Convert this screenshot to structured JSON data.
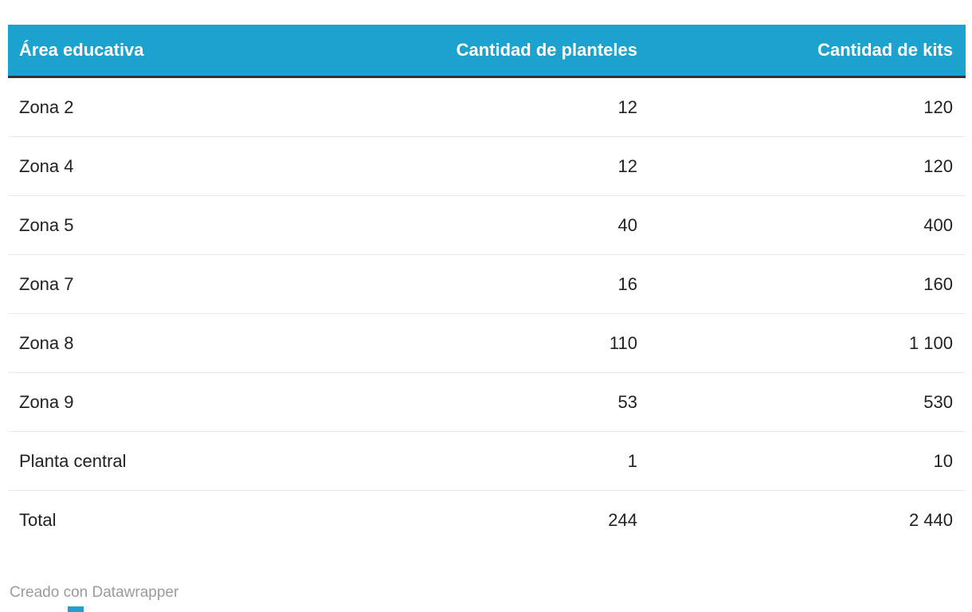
{
  "table": {
    "headers": [
      "Área educativa",
      "Cantidad de planteles",
      "Cantidad de kits"
    ],
    "rows": [
      [
        "Zona 2",
        "12",
        "120"
      ],
      [
        "Zona 4",
        "12",
        "120"
      ],
      [
        "Zona 5",
        "40",
        "400"
      ],
      [
        "Zona 7",
        "16",
        "160"
      ],
      [
        "Zona 8",
        "110",
        "1 100"
      ],
      [
        "Zona 9",
        "53",
        "530"
      ],
      [
        "Planta central",
        "1",
        "10"
      ],
      [
        "Total",
        "244",
        "2 440"
      ]
    ]
  },
  "footer": {
    "credit": "Creado con Datawrapper"
  },
  "colors": {
    "header_bg": "#1BA2CE",
    "header_text": "#ffffff",
    "header_rule": "#333333",
    "row_separator": "#e9e9e9",
    "body_text": "#222222",
    "credit_text": "#9b9b9b"
  },
  "chart_data": {
    "type": "table",
    "title": "",
    "columns": [
      "Área educativa",
      "Cantidad de planteles",
      "Cantidad de kits"
    ],
    "rows": [
      {
        "area": "Zona 2",
        "planteles": 12,
        "kits": 120
      },
      {
        "area": "Zona 4",
        "planteles": 12,
        "kits": 120
      },
      {
        "area": "Zona 5",
        "planteles": 40,
        "kits": 400
      },
      {
        "area": "Zona 7",
        "planteles": 16,
        "kits": 160
      },
      {
        "area": "Zona 8",
        "planteles": 110,
        "kits": 1100
      },
      {
        "area": "Zona 9",
        "planteles": 53,
        "kits": 530
      },
      {
        "area": "Planta central",
        "planteles": 1,
        "kits": 10
      },
      {
        "area": "Total",
        "planteles": 244,
        "kits": 2440
      }
    ],
    "notes": "Datawrapper-style data table; numeric columns right-aligned; thousands separated by narrow space"
  }
}
